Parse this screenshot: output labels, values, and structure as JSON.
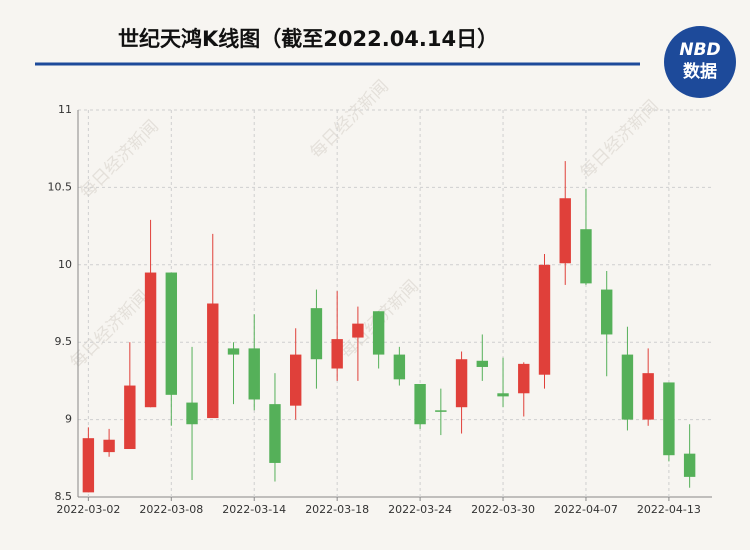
{
  "chart_data": {
    "type": "candlestick",
    "title": "世纪天鸿K线图（截至2022.04.14日）",
    "logo": {
      "brand": "NBD",
      "sub": "数据"
    },
    "watermark": "每日经济新闻",
    "categories": [
      "2022-03-02",
      null,
      null,
      null,
      "2022-03-08",
      null,
      null,
      null,
      "2022-03-14",
      null,
      null,
      null,
      "2022-03-18",
      null,
      null,
      null,
      "2022-03-24",
      null,
      null,
      null,
      "2022-03-30",
      null,
      null,
      null,
      "2022-04-07",
      null,
      null,
      null,
      "2022-04-13",
      null
    ],
    "open": [
      8.53,
      8.79,
      8.81,
      9.08,
      9.95,
      9.11,
      9.01,
      9.46,
      9.46,
      9.1,
      9.09,
      9.72,
      9.33,
      9.53,
      9.7,
      9.42,
      9.23,
      9.06,
      9.08,
      9.38,
      9.17,
      9.17,
      9.29,
      10.01,
      10.23,
      9.84,
      9.42,
      9.0,
      9.24,
      8.78
    ],
    "high": [
      8.95,
      8.94,
      9.5,
      10.29,
      9.95,
      9.47,
      10.2,
      9.5,
      9.68,
      9.3,
      9.59,
      9.84,
      9.83,
      9.73,
      9.7,
      9.47,
      9.23,
      9.2,
      9.44,
      9.55,
      9.4,
      9.37,
      10.07,
      10.67,
      10.49,
      9.96,
      9.6,
      9.46,
      9.24,
      8.97
    ],
    "low": [
      8.53,
      8.76,
      8.81,
      9.08,
      8.96,
      8.61,
      9.01,
      9.1,
      9.06,
      8.6,
      9.0,
      9.2,
      9.25,
      9.25,
      9.33,
      9.22,
      8.94,
      8.9,
      8.91,
      9.25,
      9.08,
      9.02,
      9.2,
      9.87,
      9.87,
      9.28,
      8.93,
      8.96,
      8.73,
      8.56
    ],
    "close": [
      8.88,
      8.87,
      9.22,
      9.95,
      9.16,
      8.97,
      9.75,
      9.42,
      9.13,
      8.72,
      9.42,
      9.39,
      9.52,
      9.62,
      9.42,
      9.26,
      8.97,
      9.05,
      9.39,
      9.34,
      9.15,
      9.36,
      10.0,
      10.43,
      9.88,
      9.55,
      9.0,
      9.3,
      8.77,
      8.63
    ],
    "up_color": "#e0403a",
    "down_color": "#55b059",
    "ylim": [
      8.5,
      11
    ],
    "yticks": [
      8.5,
      9,
      9.5,
      10,
      10.5,
      11
    ],
    "grid": true
  }
}
